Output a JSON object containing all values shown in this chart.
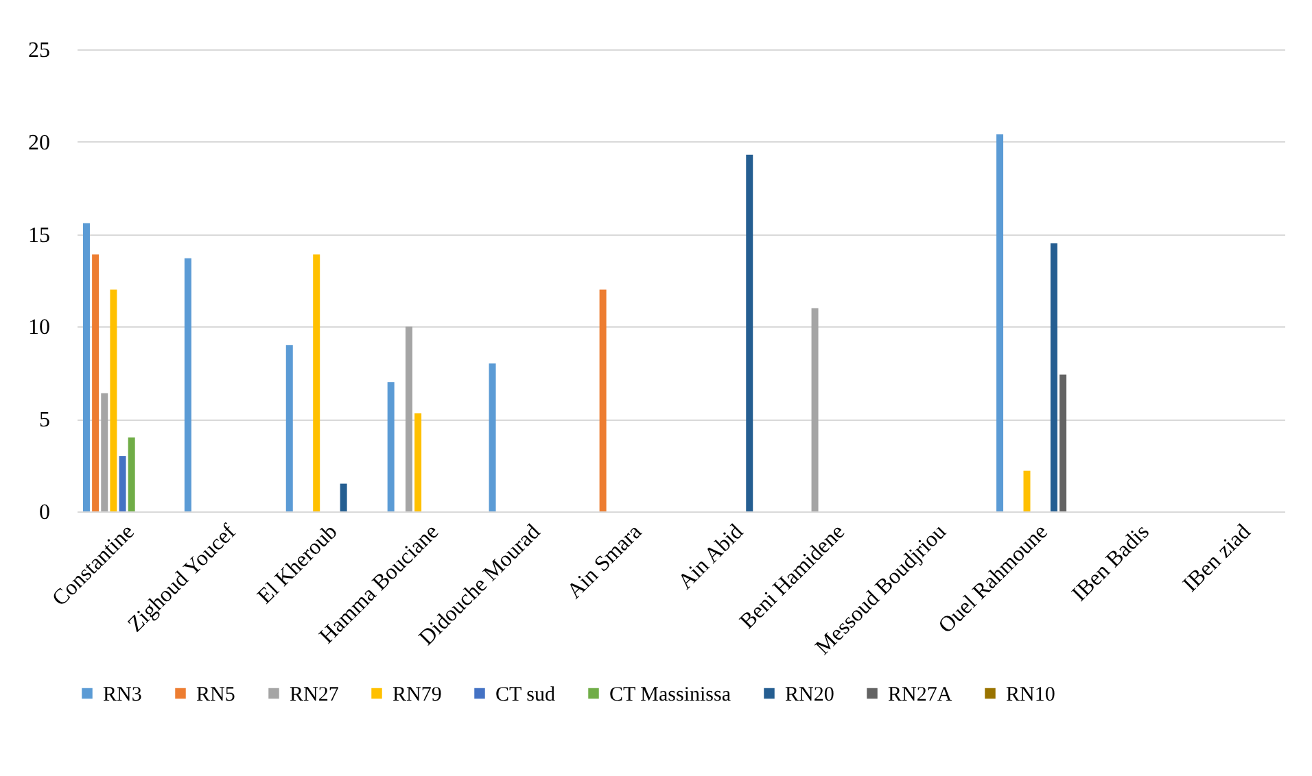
{
  "chart_data": {
    "type": "bar",
    "categories": [
      "Constantine",
      "Zighoud Youcef",
      "El Kheroub",
      "Hamma Bouciane",
      "Didouche Mourad",
      "Ain Smara",
      "Ain Abid",
      "Beni Hamidene",
      "Messoud Boudjriou",
      "Ouel Rahmoune",
      "IBen Badis",
      "IBen ziad"
    ],
    "series": [
      {
        "name": "RN3",
        "color": "#5b9bd5",
        "values": [
          15.6,
          13.7,
          9,
          7,
          8,
          null,
          null,
          null,
          null,
          20.4,
          null,
          null
        ]
      },
      {
        "name": "RN5",
        "color": "#ed7d31",
        "values": [
          13.9,
          null,
          null,
          null,
          null,
          12,
          null,
          null,
          null,
          null,
          null,
          null
        ]
      },
      {
        "name": "RN27",
        "color": "#a5a5a5",
        "values": [
          6.4,
          null,
          null,
          10,
          null,
          null,
          null,
          11,
          null,
          null,
          null,
          null
        ]
      },
      {
        "name": "RN79",
        "color": "#ffc000",
        "values": [
          12,
          null,
          13.9,
          5.3,
          null,
          null,
          null,
          null,
          null,
          2.2,
          null,
          null
        ]
      },
      {
        "name": "CT sud",
        "color": "#4472c4",
        "values": [
          3,
          null,
          null,
          null,
          null,
          null,
          null,
          null,
          null,
          null,
          null,
          null
        ]
      },
      {
        "name": "CT Massinissa",
        "color": "#70ad47",
        "values": [
          4,
          null,
          null,
          null,
          null,
          null,
          null,
          null,
          null,
          null,
          null,
          null
        ]
      },
      {
        "name": "RN20",
        "color": "#255e91",
        "values": [
          null,
          null,
          1.5,
          null,
          null,
          null,
          19.3,
          null,
          null,
          14.5,
          null,
          null
        ]
      },
      {
        "name": "RN27A",
        "color": "#636363",
        "values": [
          null,
          null,
          null,
          null,
          null,
          null,
          null,
          null,
          null,
          7.4,
          null,
          null
        ]
      },
      {
        "name": "RN10",
        "color": "#997300",
        "values": [
          null,
          null,
          null,
          null,
          null,
          null,
          null,
          null,
          null,
          null,
          null,
          null
        ]
      }
    ],
    "ylim": [
      0,
      25
    ],
    "yticks": [
      0,
      5,
      10,
      15,
      20,
      25
    ],
    "grid": "y",
    "legend": "bottom"
  }
}
